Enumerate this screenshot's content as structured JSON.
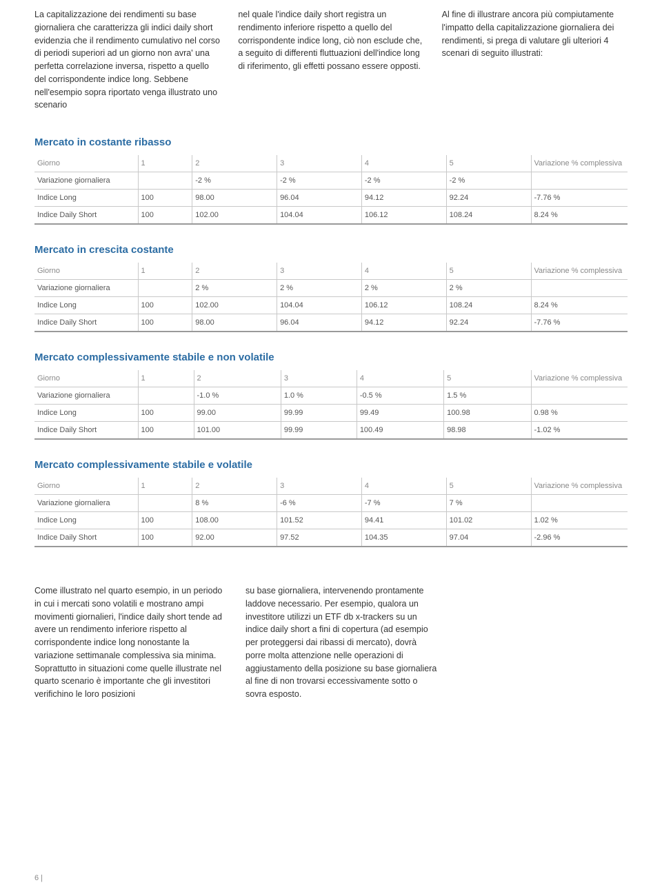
{
  "intro": {
    "col1": "La capitalizzazione dei rendimenti su base giornaliera che caratterizza gli indici daily short evidenzia che il rendimento cumulativo nel corso di periodi superiori ad un giorno non avra' una perfetta correlazione inversa, rispetto a quello del corrispondente indice long. Sebbene nell'esempio sopra riportato venga illustrato uno scenario",
    "col2": "nel quale l'indice daily short registra un rendimento inferiore rispetto a quello del corrispondente indice long, ciò non esclude che, a seguito di differenti fluttuazioni dell'indice long di riferimento, gli effetti possano essere opposti.",
    "col3": "Al fine di illustrare ancora più compiutamente l'impatto della capitalizzazione giornaliera dei rendimenti, si prega di valutare gli ulteriori 4 scenari di seguito illustrati:"
  },
  "headers": [
    "Giorno",
    "1",
    "2",
    "3",
    "4",
    "5",
    "Variazione % complessiva"
  ],
  "row_labels": [
    "Variazione giornaliera",
    "Indice Long",
    "Indice Daily Short"
  ],
  "sections": [
    {
      "title": "Mercato in costante ribasso",
      "rows": [
        [
          "",
          "-2 %",
          "-2 %",
          "-2 %",
          "-2 %",
          ""
        ],
        [
          "100",
          "98.00",
          "96.04",
          "94.12",
          "92.24",
          "-7.76 %"
        ],
        [
          "100",
          "102.00",
          "104.04",
          "106.12",
          "108.24",
          "8.24 %"
        ]
      ]
    },
    {
      "title": "Mercato in crescita costante",
      "rows": [
        [
          "",
          "2 %",
          "2 %",
          "2 %",
          "2 %",
          ""
        ],
        [
          "100",
          "102.00",
          "104.04",
          "106.12",
          "108.24",
          "8.24 %"
        ],
        [
          "100",
          "98.00",
          "96.04",
          "94.12",
          "92.24",
          "-7.76 %"
        ]
      ]
    },
    {
      "title": "Mercato complessivamente stabile e non volatile",
      "rows": [
        [
          "",
          "-1.0 %",
          "1.0 %",
          "-0.5 %",
          "1.5 %",
          ""
        ],
        [
          "100",
          "99.00",
          "99.99",
          "99.49",
          "100.98",
          "0.98 %"
        ],
        [
          "100",
          "101.00",
          "99.99",
          "100.49",
          "98.98",
          "-1.02 %"
        ]
      ]
    },
    {
      "title": "Mercato complessivamente stabile e volatile",
      "rows": [
        [
          "",
          "8 %",
          "-6 %",
          "-7 %",
          "7 %",
          ""
        ],
        [
          "100",
          "108.00",
          "101.52",
          "94.41",
          "101.02",
          "1.02 %"
        ],
        [
          "100",
          "92.00",
          "97.52",
          "104.35",
          "97.04",
          "-2.96 %"
        ]
      ]
    }
  ],
  "bottom": {
    "col1": "Come illustrato nel quarto esempio, in un periodo in cui i mercati sono volatili e mostrano ampi movimenti giornalieri, l'indice daily short tende ad avere un rendimento inferiore rispetto al corrispondente indice long nonostante la variazione settimanale complessiva sia minima. Soprattutto in situazioni come quelle illustrate nel quarto scenario è importante che gli investitori verifichino le loro posizioni",
    "col2": "su base giornaliera, intervenendo prontamente laddove necessario. Per esempio, qualora un investitore utilizzi un ETF db x-trackers su un indice daily short a fini di copertura (ad esempio per proteggersi dai ribassi di mercato), dovrà porre molta attenzione nelle operazioni di aggiustamento della posizione su base giornaliera al fine di non trovarsi eccessivamente sotto o sovra esposto."
  },
  "footer": "6 |",
  "colors": {
    "heading": "#2b6ca3",
    "text": "#333333",
    "muted": "#888888",
    "border": "#c8c8c8"
  }
}
